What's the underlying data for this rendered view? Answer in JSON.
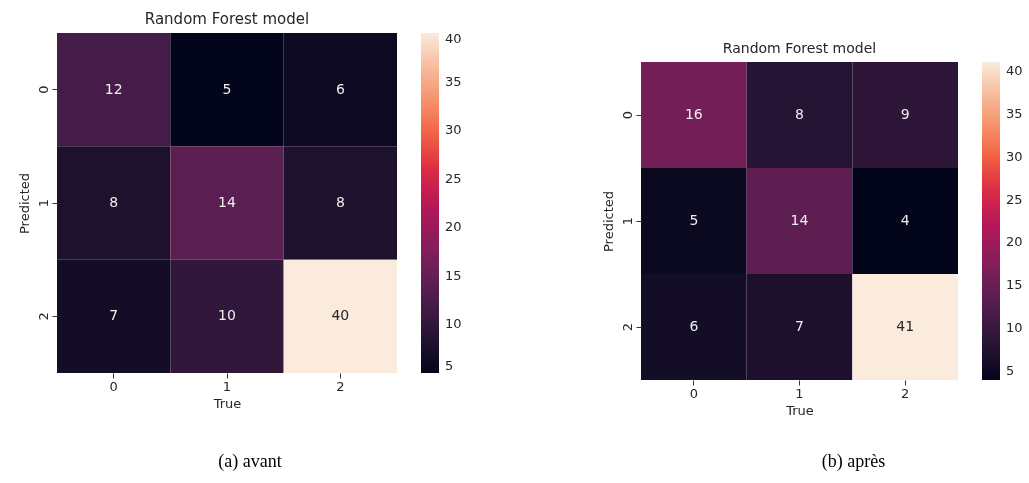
{
  "chart_data": [
    {
      "type": "heatmap",
      "title": "Random Forest model",
      "xlabel": "True",
      "ylabel": "Predicted",
      "categories": [
        "0",
        "1",
        "2"
      ],
      "y_categories": [
        "0",
        "1",
        "2"
      ],
      "cells": [
        [
          12,
          5,
          6
        ],
        [
          8,
          14,
          8
        ],
        [
          7,
          10,
          40
        ]
      ],
      "clim": [
        5,
        40
      ],
      "cticks": [
        5,
        10,
        15,
        20,
        25,
        30,
        35,
        40
      ],
      "data_labels": true,
      "annotations": [
        "(a) avant"
      ]
    },
    {
      "type": "heatmap",
      "title": "Random Forest model",
      "xlabel": "True",
      "ylabel": "Predicted",
      "categories": [
        "0",
        "1",
        "2"
      ],
      "y_categories": [
        "0",
        "1",
        "2"
      ],
      "cells": [
        [
          16,
          8,
          9
        ],
        [
          5,
          14,
          4
        ],
        [
          6,
          7,
          41
        ]
      ],
      "clim": [
        4,
        41
      ],
      "cticks": [
        5,
        10,
        15,
        20,
        25,
        30,
        35,
        40
      ],
      "data_labels": true,
      "annotations": [
        "(b) après"
      ]
    }
  ]
}
